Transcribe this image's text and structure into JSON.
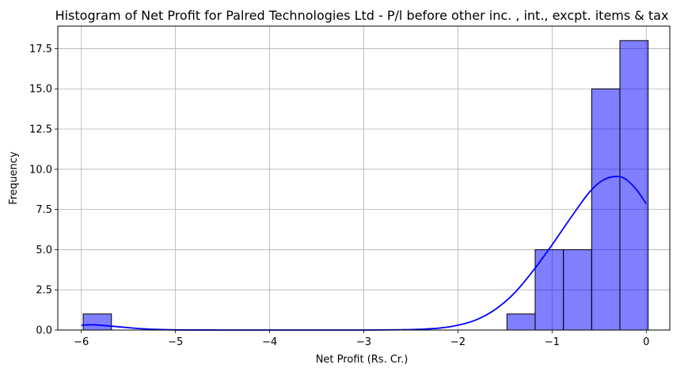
{
  "chart_data": {
    "type": "bar",
    "subtype": "histogram",
    "title": "Histogram of Net Profit for Palred Technologies Ltd - P/l before other inc. , int., excpt. items & tax",
    "xlabel": "Net Profit (Rs. Cr.)",
    "ylabel": "Frequency",
    "xlim": [
      -6.25,
      0.25
    ],
    "ylim": [
      0,
      18.9
    ],
    "grid": true,
    "bar_color": "#0000ff",
    "bar_opacity": 0.5,
    "edge_color": "#000000",
    "kde_color": "#0000ff",
    "x_ticks": [
      {
        "value": -6,
        "label": "−6"
      },
      {
        "value": -5,
        "label": "−5"
      },
      {
        "value": -4,
        "label": "−4"
      },
      {
        "value": -3,
        "label": "−3"
      },
      {
        "value": -2,
        "label": "−2"
      },
      {
        "value": -1,
        "label": "−1"
      },
      {
        "value": 0,
        "label": "0"
      }
    ],
    "y_ticks": [
      {
        "value": 0,
        "label": "0.0"
      },
      {
        "value": 2.5,
        "label": "2.5"
      },
      {
        "value": 5,
        "label": "5.0"
      },
      {
        "value": 7.5,
        "label": "7.5"
      },
      {
        "value": 10,
        "label": "10.0"
      },
      {
        "value": 12.5,
        "label": "12.5"
      },
      {
        "value": 15,
        "label": "15.0"
      },
      {
        "value": 17.5,
        "label": "17.5"
      }
    ],
    "bins": [
      {
        "start": -5.98,
        "end": -5.68,
        "count": 1
      },
      {
        "start": -1.48,
        "end": -1.18,
        "count": 1
      },
      {
        "start": -1.18,
        "end": -0.88,
        "count": 5
      },
      {
        "start": -0.88,
        "end": -0.58,
        "count": 5
      },
      {
        "start": -0.58,
        "end": -0.28,
        "count": 15
      },
      {
        "start": -0.28,
        "end": 0.02,
        "count": 18
      }
    ],
    "kde": {
      "x": [
        -6.0,
        -5.9,
        -5.8,
        -5.6,
        -5.4,
        -5.2,
        -5.0,
        -4.5,
        -4.0,
        -3.5,
        -3.0,
        -2.6,
        -2.4,
        -2.2,
        -2.0,
        -1.8,
        -1.6,
        -1.4,
        -1.2,
        -1.0,
        -0.8,
        -0.6,
        -0.45,
        -0.3,
        -0.2,
        -0.1,
        0.0
      ],
      "y": [
        0.3,
        0.33,
        0.3,
        0.2,
        0.1,
        0.04,
        0.01,
        0.0,
        0.0,
        0.0,
        0.0,
        0.02,
        0.05,
        0.12,
        0.3,
        0.65,
        1.3,
        2.3,
        3.7,
        5.3,
        7.0,
        8.6,
        9.35,
        9.55,
        9.3,
        8.7,
        7.85
      ]
    }
  }
}
